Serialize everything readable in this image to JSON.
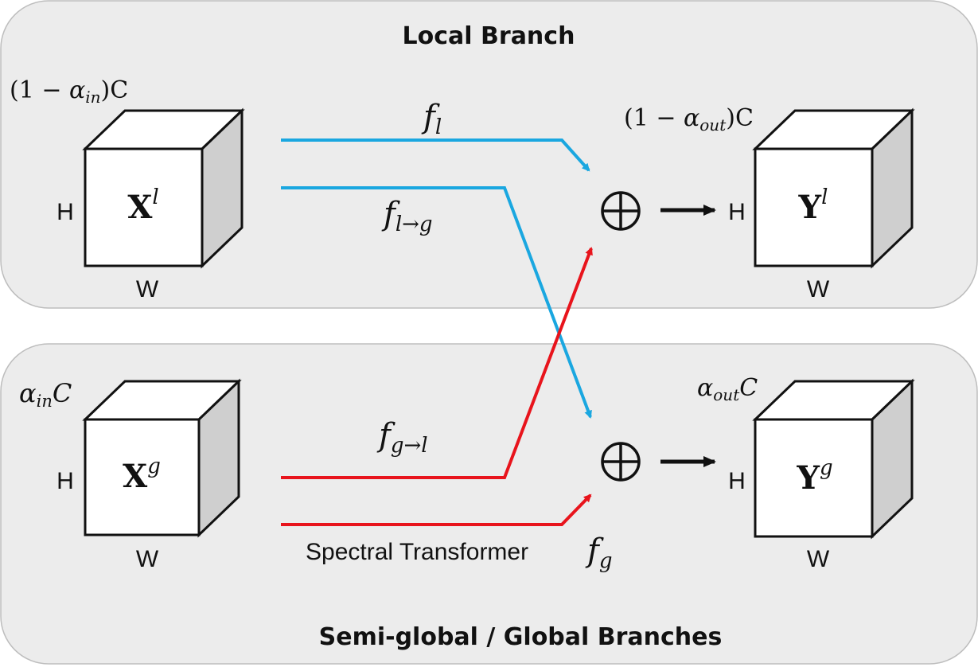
{
  "local_branch": {
    "title": "Local Branch",
    "input_cube": {
      "channel_label": {
        "prefix": "(1 − ",
        "alpha": "α",
        "sub": "in",
        "suffix": ")C"
      },
      "height_label": "H",
      "width_label": "W",
      "tensor": {
        "base": "X",
        "sup": "l"
      }
    },
    "output_cube": {
      "channel_label": {
        "prefix": "(1 − ",
        "alpha": "α",
        "sub": "out",
        "suffix": ")C"
      },
      "height_label": "H",
      "width_label": "W",
      "tensor": {
        "base": "Y",
        "sup": "l"
      }
    },
    "path_same": {
      "base": "f",
      "sub": "l"
    },
    "path_cross": {
      "base": "f",
      "sub": "l→g"
    }
  },
  "global_branch": {
    "title": "Semi-global / Global Branches",
    "input_cube": {
      "channel_label": {
        "alpha": "α",
        "sub": "in",
        "suffix": "C"
      },
      "height_label": "H",
      "width_label": "W",
      "tensor": {
        "base": "X",
        "sup": "g"
      }
    },
    "output_cube": {
      "channel_label": {
        "alpha": "α",
        "sub": "out",
        "suffix": "C"
      },
      "height_label": "H",
      "width_label": "W",
      "tensor": {
        "base": "Y",
        "sup": "g"
      }
    },
    "path_cross": {
      "base": "f",
      "sub": "g→l"
    },
    "path_same_prefix": "Spectral Transformer",
    "path_same": {
      "base": "f",
      "sub": "g"
    }
  },
  "operators": {
    "sum_symbol": "⊕"
  },
  "colors": {
    "panel_fill": "#ececec",
    "panel_stroke": "#bdbdbd",
    "local_arrow": "#1aa7e0",
    "global_arrow": "#e8141c",
    "cube_side": "#cfcfcf",
    "ink": "#111111"
  }
}
